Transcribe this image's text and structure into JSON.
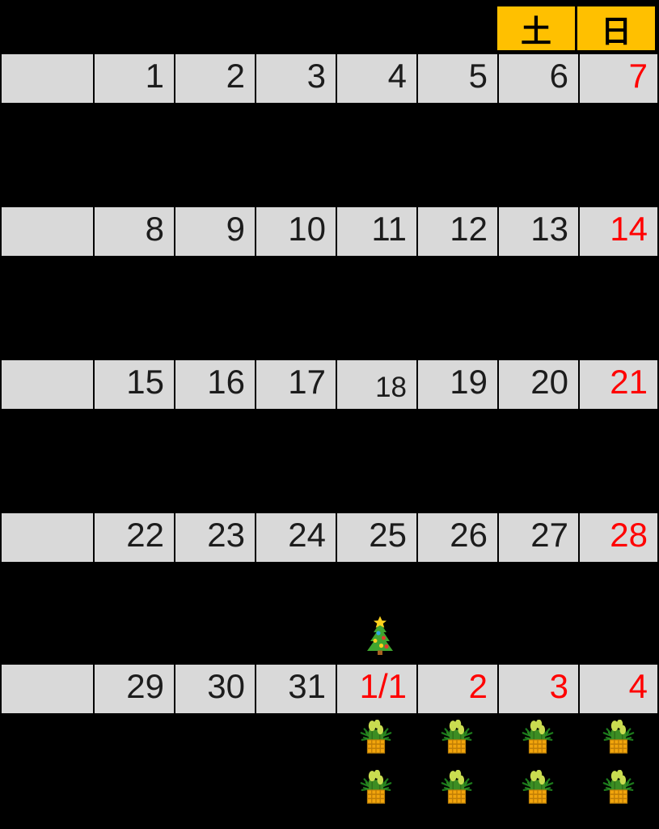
{
  "page": {
    "background": "#000000"
  },
  "weekday_header": {
    "bg_color": "#FFC000",
    "text_color": "#000000",
    "cells": [
      {
        "label": "土"
      },
      {
        "label": "日"
      }
    ]
  },
  "calendar": {
    "cell_bg": "#D9D9D9",
    "date_color": "#1C1C1C",
    "holiday_color": "#FF0000",
    "weeks": [
      {
        "cells": [
          {
            "label": ""
          },
          {
            "label": "1"
          },
          {
            "label": "2"
          },
          {
            "label": "3"
          },
          {
            "label": "4"
          },
          {
            "label": "5"
          },
          {
            "label": "6"
          },
          {
            "label": "7",
            "holiday": true
          }
        ]
      },
      {
        "cells": [
          {
            "label": ""
          },
          {
            "label": "8"
          },
          {
            "label": "9"
          },
          {
            "label": "10"
          },
          {
            "label": "11"
          },
          {
            "label": "12"
          },
          {
            "label": "13"
          },
          {
            "label": "14",
            "holiday": true
          }
        ]
      },
      {
        "cells": [
          {
            "label": ""
          },
          {
            "label": "15"
          },
          {
            "label": "16"
          },
          {
            "label": "17"
          },
          {
            "label": "18",
            "muted": true
          },
          {
            "label": "19"
          },
          {
            "label": "20"
          },
          {
            "label": "21",
            "holiday": true
          }
        ]
      },
      {
        "cells": [
          {
            "label": ""
          },
          {
            "label": "22"
          },
          {
            "label": "23"
          },
          {
            "label": "24"
          },
          {
            "label": "25"
          },
          {
            "label": "26"
          },
          {
            "label": "27"
          },
          {
            "label": "28",
            "holiday": true
          }
        ]
      },
      {
        "cells": [
          {
            "label": ""
          },
          {
            "label": "29"
          },
          {
            "label": "30"
          },
          {
            "label": "31"
          },
          {
            "label": "1/1",
            "holiday": true
          },
          {
            "label": "2",
            "holiday": true
          },
          {
            "label": "3",
            "holiday": true
          },
          {
            "label": "4",
            "holiday": true
          }
        ]
      }
    ]
  },
  "decorations": {
    "christmas_tree": {
      "icon": "christmas-tree-icon",
      "below_date": "25"
    },
    "kadomatsu": {
      "icon": "kadomatsu-icon",
      "rows": 2,
      "below_dates": [
        "1/1",
        "2",
        "3",
        "4"
      ]
    }
  }
}
